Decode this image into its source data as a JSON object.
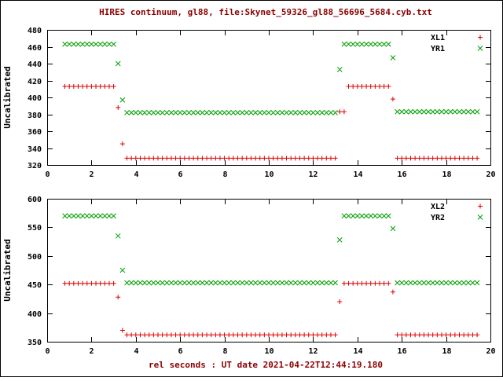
{
  "chart_data": {
    "type": "scatter",
    "title": "HIRES continuum, gl88, file:Skynet_59326_gl88_56696_5684.cyb.txt",
    "xlabel": "rel seconds : UT date 2021-04-22T12:44:19.180",
    "sample_step": 0.2,
    "plots": [
      {
        "ylabel": "Uncalibrated",
        "xlim": [
          0,
          20
        ],
        "ylim": [
          320,
          480
        ],
        "xticks": [
          0,
          2,
          4,
          6,
          8,
          10,
          12,
          14,
          16,
          18,
          20
        ],
        "yticks": [
          320,
          340,
          360,
          380,
          400,
          420,
          440,
          460,
          480
        ],
        "grid": false,
        "legend": {
          "position": "top-right",
          "entries": [
            "XL1",
            "YR1"
          ]
        },
        "series": [
          {
            "name": "XL1",
            "marker": "plus",
            "color": "#dd0000",
            "segments": [
              {
                "x_from": 0.8,
                "x_to": 3.0,
                "y": 413
              },
              {
                "x_from": 3.2,
                "x_to": 3.2,
                "y": 388
              },
              {
                "x_from": 3.4,
                "x_to": 3.4,
                "y": 345
              },
              {
                "x_from": 3.6,
                "x_to": 13.0,
                "y": 328
              },
              {
                "x_from": 13.2,
                "x_to": 13.4,
                "y": 383
              },
              {
                "x_from": 13.6,
                "x_to": 15.4,
                "y": 413
              },
              {
                "x_from": 15.6,
                "x_to": 15.6,
                "y": 398
              },
              {
                "x_from": 15.8,
                "x_to": 19.4,
                "y": 328
              }
            ]
          },
          {
            "name": "YR1",
            "marker": "cross",
            "color": "#00a000",
            "segments": [
              {
                "x_from": 0.8,
                "x_to": 3.0,
                "y": 463
              },
              {
                "x_from": 3.2,
                "x_to": 3.2,
                "y": 440
              },
              {
                "x_from": 3.4,
                "x_to": 3.4,
                "y": 397
              },
              {
                "x_from": 3.6,
                "x_to": 13.0,
                "y": 382
              },
              {
                "x_from": 13.2,
                "x_to": 13.2,
                "y": 433
              },
              {
                "x_from": 13.4,
                "x_to": 15.4,
                "y": 463
              },
              {
                "x_from": 15.6,
                "x_to": 15.6,
                "y": 447
              },
              {
                "x_from": 15.8,
                "x_to": 19.4,
                "y": 383
              }
            ]
          }
        ]
      },
      {
        "ylabel": "Uncalibrated",
        "xlim": [
          0,
          20
        ],
        "ylim": [
          350,
          600
        ],
        "xticks": [
          0,
          2,
          4,
          6,
          8,
          10,
          12,
          14,
          16,
          18,
          20
        ],
        "yticks": [
          350,
          400,
          450,
          500,
          550,
          600
        ],
        "grid": false,
        "legend": {
          "position": "top-right",
          "entries": [
            "XL2",
            "YR2"
          ]
        },
        "series": [
          {
            "name": "XL2",
            "marker": "plus",
            "color": "#dd0000",
            "segments": [
              {
                "x_from": 0.8,
                "x_to": 3.0,
                "y": 452
              },
              {
                "x_from": 3.2,
                "x_to": 3.2,
                "y": 428
              },
              {
                "x_from": 3.4,
                "x_to": 3.4,
                "y": 370
              },
              {
                "x_from": 3.6,
                "x_to": 13.0,
                "y": 362
              },
              {
                "x_from": 13.2,
                "x_to": 13.2,
                "y": 420
              },
              {
                "x_from": 13.4,
                "x_to": 15.4,
                "y": 452
              },
              {
                "x_from": 15.6,
                "x_to": 15.6,
                "y": 437
              },
              {
                "x_from": 15.8,
                "x_to": 19.4,
                "y": 362
              }
            ]
          },
          {
            "name": "YR2",
            "marker": "cross",
            "color": "#00a000",
            "segments": [
              {
                "x_from": 0.8,
                "x_to": 3.0,
                "y": 570
              },
              {
                "x_from": 3.2,
                "x_to": 3.2,
                "y": 535
              },
              {
                "x_from": 3.4,
                "x_to": 3.4,
                "y": 475
              },
              {
                "x_from": 3.6,
                "x_to": 13.0,
                "y": 453
              },
              {
                "x_from": 13.2,
                "x_to": 13.2,
                "y": 528
              },
              {
                "x_from": 13.4,
                "x_to": 15.4,
                "y": 570
              },
              {
                "x_from": 15.6,
                "x_to": 15.6,
                "y": 548
              },
              {
                "x_from": 15.8,
                "x_to": 19.4,
                "y": 453
              }
            ]
          }
        ]
      }
    ]
  }
}
